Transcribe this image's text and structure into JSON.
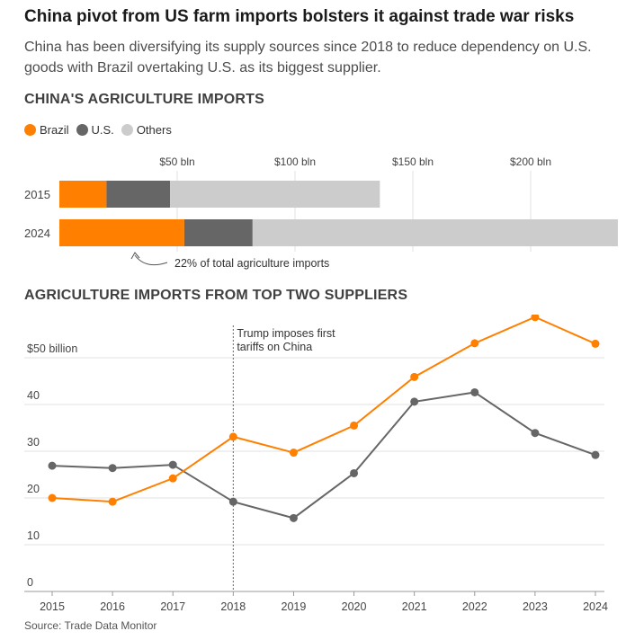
{
  "header": {
    "title": "China pivot from US farm imports bolsters it against trade war risks",
    "subtitle": "China has been diversifying its supply sources since 2018 to reduce dependency on U.S. goods with Brazil overtaking U.S. as its biggest supplier."
  },
  "source": "Source: Trade Data Monitor",
  "colors": {
    "brazil": "#ff8000",
    "us": "#666666",
    "others": "#cccccc",
    "grid": "#e0e0e0"
  },
  "chart_data": [
    {
      "type": "bar",
      "orientation": "horizontal",
      "stacked": true,
      "title": "CHINA'S AGRICULTURE IMPORTS",
      "legend": [
        "Brazil",
        "U.S.",
        "Others"
      ],
      "legend_position": "top-left",
      "x_tick_labels": [
        "$50 bln",
        "$100 bln",
        "$150 bln",
        "$200 bln"
      ],
      "x_ticks": [
        50,
        100,
        150,
        200
      ],
      "xlim": [
        0,
        237
      ],
      "categories": [
        "2015",
        "2024"
      ],
      "series": [
        {
          "name": "Brazil",
          "values": [
            20,
            53
          ]
        },
        {
          "name": "U.S.",
          "values": [
            27,
            29
          ]
        },
        {
          "name": "Others",
          "values": [
            89,
            155
          ]
        }
      ],
      "annotation": "22% of total agriculture imports",
      "grid": true
    },
    {
      "type": "line",
      "title": "AGRICULTURE IMPORTS FROM TOP TWO SUPPLIERS",
      "x": [
        "2015",
        "2016",
        "2017",
        "2018",
        "2019",
        "2020",
        "2021",
        "2022",
        "2023",
        "2024"
      ],
      "y_ticks": [
        0,
        10,
        20,
        30,
        40,
        50
      ],
      "y_tick_labels": [
        "0",
        "10",
        "20",
        "30",
        "40",
        "$50 billion"
      ],
      "ylim": [
        0,
        60
      ],
      "series": [
        {
          "name": "Brazil",
          "values": [
            20.0,
            19.2,
            24.2,
            33.1,
            29.7,
            35.5,
            45.9,
            53.1,
            58.7,
            53.0
          ]
        },
        {
          "name": "U.S.",
          "values": [
            26.9,
            26.4,
            27.1,
            19.2,
            15.7,
            25.3,
            40.6,
            42.6,
            33.9,
            29.2
          ]
        }
      ],
      "event_marker": {
        "x": "2018",
        "label_lines": [
          "Trump imposes first",
          "tariffs on China"
        ]
      },
      "grid": true
    }
  ]
}
